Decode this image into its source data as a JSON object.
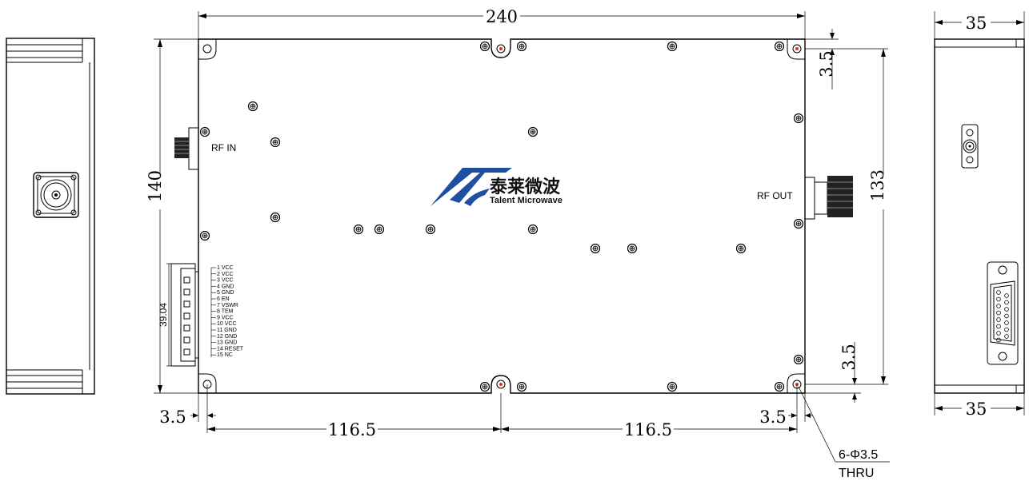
{
  "dimensions": {
    "width_top": "240",
    "height_left": "140",
    "height_right": "133",
    "hole_offset_top": "3.5",
    "hole_offset_bottom": "3.5",
    "hole_offset_left": "3.5",
    "hole_offset_right": "3.5",
    "span_left": "116.5",
    "span_right": "116.5",
    "side_width_top": "35",
    "side_width_bottom": "35",
    "connector_height": "39.04"
  },
  "labels": {
    "rf_in": "RF IN",
    "rf_out": "RF OUT",
    "holes_line1": "6-Φ3.5",
    "holes_line2": "THRU"
  },
  "logo": {
    "cn": "泰莱微波",
    "en": "Talent Microwave",
    "color": "#1f4fa0"
  },
  "pins": [
    "1 VCC",
    "2 VCC",
    "3 VCC",
    "4 GND",
    "5 GND",
    "6 EN",
    "7 VSWR",
    "8 TEM",
    "9 VCC",
    "10 VCC",
    "11 GND",
    "12 GND",
    "13 GND",
    "14 RESET",
    "15 NC"
  ]
}
